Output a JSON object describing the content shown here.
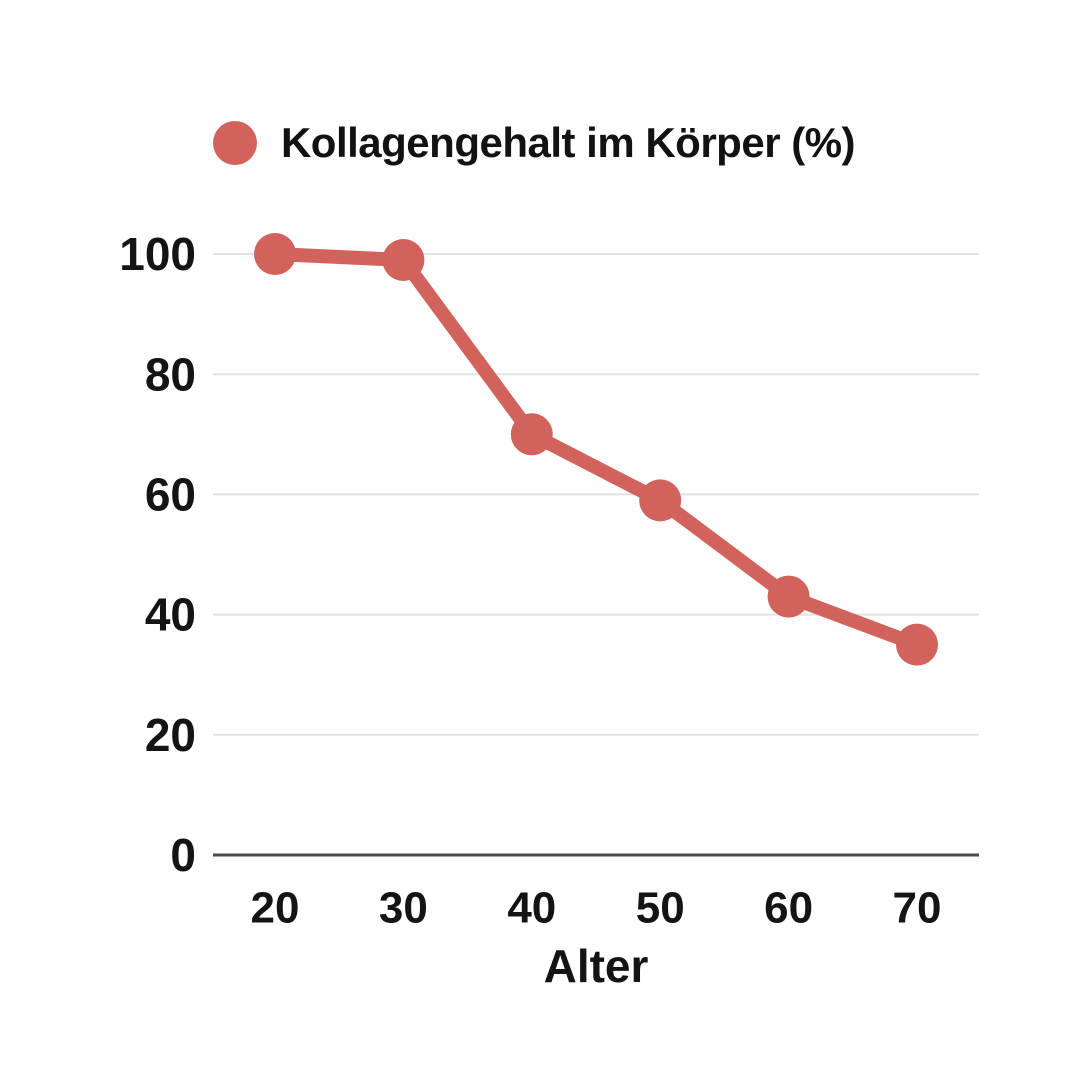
{
  "legend": {
    "label": "Kollagengehalt im Körper (%)"
  },
  "colors": {
    "series": "#d2635c",
    "grid": "#e2e2e2",
    "axis": "#4a4a4a",
    "text": "#141414"
  },
  "chart_data": {
    "type": "line",
    "title": "",
    "x": [
      20,
      30,
      40,
      50,
      60,
      70
    ],
    "series": [
      {
        "name": "Kollagengehalt im Körper (%)",
        "values": [
          100,
          99,
          70,
          59,
          43,
          35
        ]
      }
    ],
    "xlabel": "Alter",
    "ylabel": "",
    "ylim": [
      0,
      100
    ],
    "yticks": [
      0,
      20,
      40,
      60,
      80,
      100
    ],
    "xticks": [
      20,
      30,
      40,
      50,
      60,
      70
    ],
    "grid": true,
    "legend_position": "top"
  }
}
